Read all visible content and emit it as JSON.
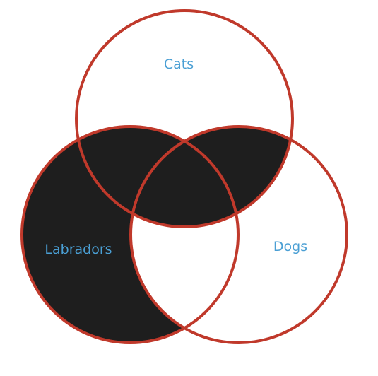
{
  "diagram": {
    "type": "venn",
    "sets": [
      {
        "id": "cats",
        "label": "Cats"
      },
      {
        "id": "labradors",
        "label": "Labradors"
      },
      {
        "id": "dogs",
        "label": "Dogs"
      }
    ],
    "colors": {
      "outline": "#c0392b",
      "fill": "#1e1e1e",
      "background": "#ffffff",
      "label": "#4a9fd4"
    },
    "shaded_regions": [
      "labradors-only",
      "cats-and-dogs-only",
      "cats-and-labradors-only",
      "cats-labradors-dogs"
    ]
  }
}
